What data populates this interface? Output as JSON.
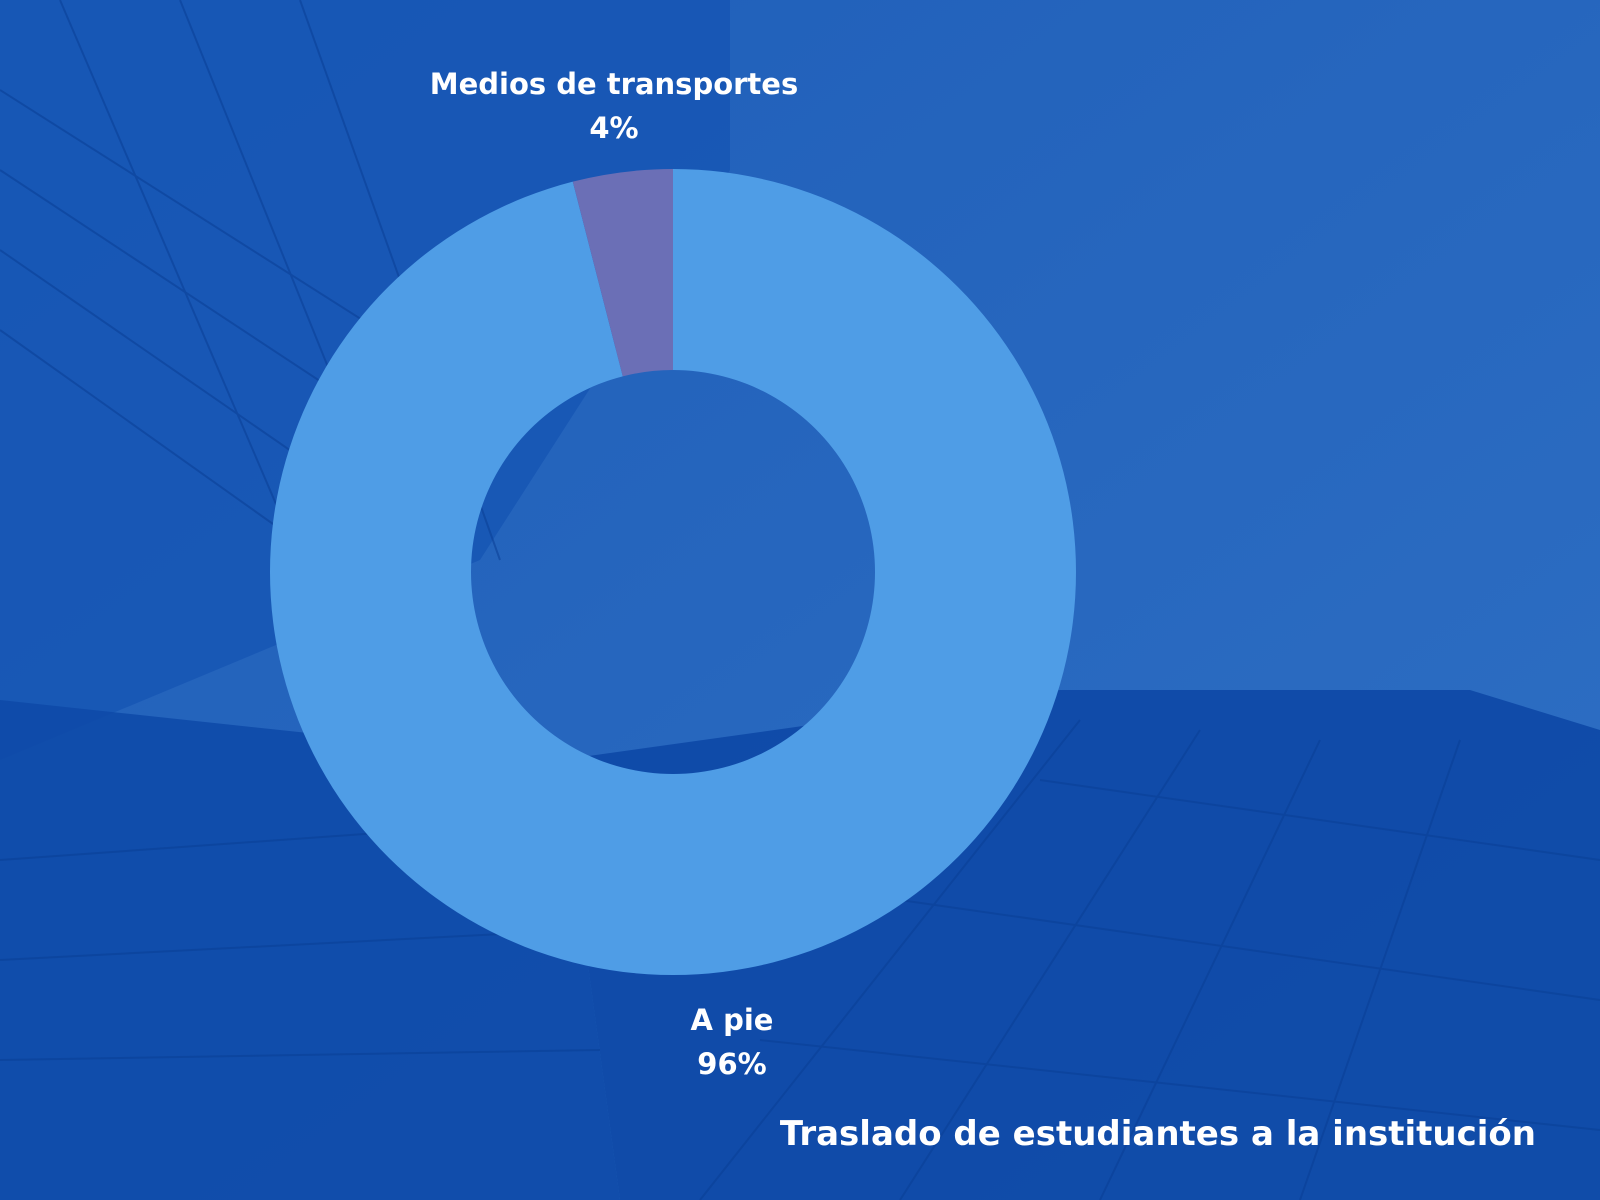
{
  "chart_data": {
    "type": "pie",
    "variant": "donut",
    "title": "Traslado de estudiantes a la institución",
    "legend": "none",
    "slices": [
      {
        "label": "A pie",
        "value": 96,
        "percent_label": "96%",
        "color": "#4f9de6"
      },
      {
        "label": "Medios de transportes",
        "value": 4,
        "percent_label": "4%",
        "color": "#6b6fb6"
      }
    ]
  },
  "theme": {
    "background": "#2a63b8",
    "background_dark": "#0f4aa8"
  }
}
